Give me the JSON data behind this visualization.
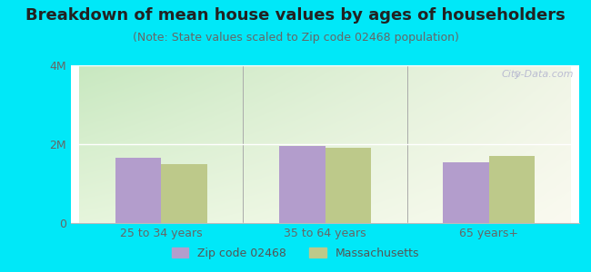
{
  "title": "Breakdown of mean house values by ages of householders",
  "subtitle": "(Note: State values scaled to Zip code 02468 population)",
  "categories": [
    "25 to 34 years",
    "35 to 64 years",
    "65 years+"
  ],
  "zip_values": [
    1650000,
    1950000,
    1550000
  ],
  "state_values": [
    1500000,
    1900000,
    1700000
  ],
  "ylim": [
    0,
    4000000
  ],
  "yticks": [
    0,
    2000000,
    4000000
  ],
  "ytick_labels": [
    "0",
    "2M",
    "4M"
  ],
  "zip_color": "#b39dcc",
  "state_color": "#bdc98a",
  "background_outer": "#00e8f8",
  "bar_width": 0.28,
  "legend_zip": "Zip code 02468",
  "legend_state": "Massachusetts",
  "watermark": "City-Data.com",
  "title_fontsize": 13,
  "subtitle_fontsize": 9,
  "tick_fontsize": 9,
  "legend_fontsize": 9,
  "title_color": "#222222",
  "subtitle_color": "#666666",
  "tick_color": "#666666",
  "grad_top_left": "#c8e8c0",
  "grad_bottom_right": "#f0f0e0"
}
